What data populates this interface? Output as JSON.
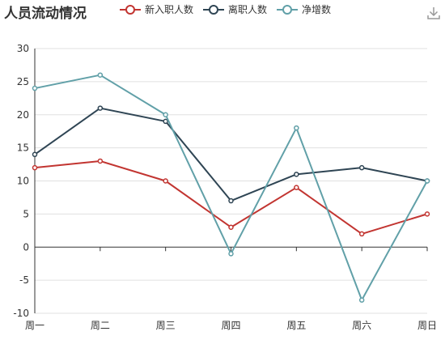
{
  "chart_data": {
    "type": "line",
    "title": "人员流动情况",
    "categories": [
      "周一",
      "周二",
      "周三",
      "周四",
      "周五",
      "周六",
      "周日"
    ],
    "series": [
      {
        "name": "新入职人数",
        "color": "#c23531",
        "values": [
          12,
          13,
          10,
          3,
          9,
          2,
          5
        ]
      },
      {
        "name": "离职人数",
        "color": "#2f4554",
        "values": [
          14,
          21,
          19,
          7,
          11,
          12,
          10
        ]
      },
      {
        "name": "净增数",
        "color": "#61a0a8",
        "values": [
          24,
          26,
          20,
          -1,
          18,
          -8,
          10
        ]
      }
    ],
    "ylim": [
      -10,
      30
    ],
    "yticks": [
      30,
      25,
      20,
      15,
      10,
      5,
      0,
      -5,
      -10
    ],
    "xlabel": "",
    "ylabel": "",
    "grid": true,
    "legend": "top"
  },
  "toolbar": {
    "download_icon": "download-icon"
  }
}
